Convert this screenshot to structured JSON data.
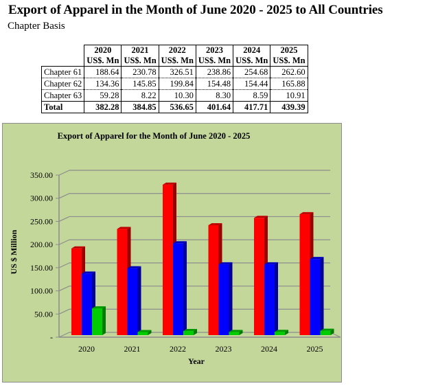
{
  "page": {
    "title": "Export of Apparel in the Month of June 2020 - 2025 to All Countries",
    "subtitle": "Chapter Basis"
  },
  "table": {
    "columns": [
      {
        "year": "2020",
        "unit": "US$. Mn"
      },
      {
        "year": "2021",
        "unit": "US$. Mn"
      },
      {
        "year": "2022",
        "unit": "US$. Mn"
      },
      {
        "year": "2023",
        "unit": "US$. Mn"
      },
      {
        "year": "2024",
        "unit": "US$. Mn"
      },
      {
        "year": "2025",
        "unit": "US$. Mn"
      }
    ],
    "rows": [
      {
        "label": "Chapter 61",
        "values": [
          "188.64",
          "230.78",
          "326.51",
          "238.86",
          "254.68",
          "262.60"
        ]
      },
      {
        "label": "Chapter 62",
        "values": [
          "134.36",
          "145.85",
          "199.84",
          "154.48",
          "154.44",
          "165.88"
        ]
      },
      {
        "label": "Chapter 63",
        "values": [
          "59.28",
          "8.22",
          "10.30",
          "8.30",
          "8.59",
          "10.91"
        ]
      }
    ],
    "total": {
      "label": "Total",
      "values": [
        "382.28",
        "384.85",
        "536.65",
        "401.64",
        "417.71",
        "439.39"
      ]
    }
  },
  "chart_data": {
    "type": "bar",
    "style": "3d-clustered-column",
    "title": "Export of Apparel for the Month of June 2020 - 2025",
    "xlabel": "Year",
    "ylabel": "US $ Million",
    "categories": [
      "2020",
      "2021",
      "2022",
      "2023",
      "2024",
      "2025"
    ],
    "series": [
      {
        "name": "Chapter 61",
        "color": "#ff0000",
        "values": [
          188.64,
          230.78,
          326.51,
          238.86,
          254.68,
          262.6
        ]
      },
      {
        "name": "Chapter 62",
        "color": "#0000ff",
        "values": [
          134.36,
          145.85,
          199.84,
          154.48,
          154.44,
          165.88
        ]
      },
      {
        "name": "Chapter 63",
        "color": "#00cc00",
        "values": [
          59.28,
          8.22,
          10.3,
          8.3,
          8.59,
          10.91
        ]
      }
    ],
    "ylim": [
      0,
      350
    ],
    "yticks": [
      0,
      50,
      100,
      150,
      200,
      250,
      300,
      350
    ],
    "ytick_labels": [
      "-",
      "50.00",
      "100.00",
      "150.00",
      "200.00",
      "250.00",
      "300.00",
      "350.00"
    ],
    "grid": true,
    "legend_position": "right",
    "background": "#c4d79b"
  }
}
